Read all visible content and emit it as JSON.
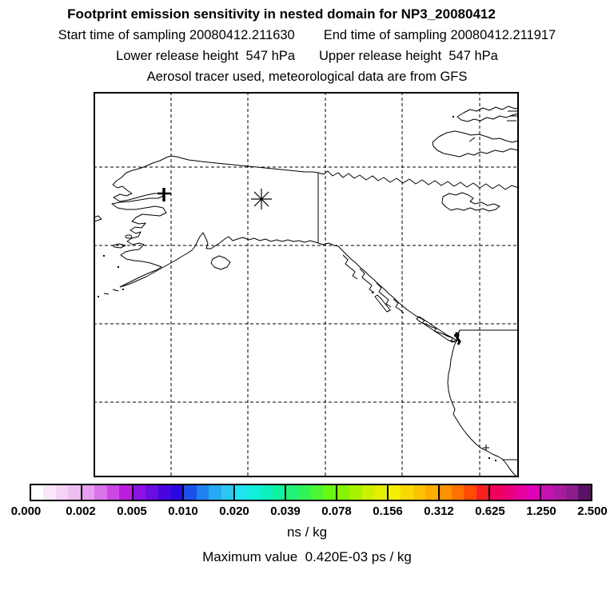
{
  "header": {
    "title": "Footprint emission sensitivity in nested domain for NP3_20080412",
    "start_time_label": "Start time of sampling 20080412.211630",
    "end_time_label": "End time of sampling 20080412.211917",
    "lower_release_label": "Lower release height  547 hPa",
    "upper_release_label": "Upper release height  547 hPa",
    "tracer_line": "Aerosol tracer used, meteorological data are from GFS"
  },
  "map": {
    "release_marker": "asterisk",
    "station_marker": "plus"
  },
  "colorbar": {
    "tick_labels": [
      "0.000",
      "0.002",
      "0.005",
      "0.010",
      "0.020",
      "0.039",
      "0.078",
      "0.156",
      "0.312",
      "0.625",
      "1.250",
      "2.500"
    ],
    "unit_label": "ns / kg",
    "max_value_label": "Maximum value  0.420E-03 ps / kg",
    "cell_colors": [
      "#FFFFFF",
      "#FAE8FA",
      "#F4D3F6",
      "#EFBEF2",
      "#E79EEE",
      "#DA74E9",
      "#CB49E3",
      "#BB1EDD",
      "#8C13E4",
      "#6B0CE1",
      "#4A05DE",
      "#2A08E2",
      "#1C50EC",
      "#2180F2",
      "#27A8F4",
      "#2AC8F0",
      "#1FE4F0",
      "#12EDDC",
      "#0CF0C0",
      "#0FF2A2",
      "#22F278",
      "#30F455",
      "#4BF632",
      "#68F815",
      "#84F400",
      "#A8F200",
      "#CCF000",
      "#E4EE00",
      "#F2EE00",
      "#F8DA00",
      "#FCC400",
      "#FFAD00",
      "#FF9200",
      "#FF7200",
      "#FF4C00",
      "#F8201E",
      "#F00058",
      "#EB007A",
      "#E6009C",
      "#E000BC",
      "#C312B0",
      "#A81A9E",
      "#8C1E8C",
      "#5A1166"
    ]
  },
  "chart_data": {
    "type": "heatmap",
    "title": "Footprint emission sensitivity in nested domain for NP3_20080412",
    "station_id": "NP3_20080412",
    "start_time_of_sampling": "20080412.211630",
    "end_time_of_sampling": "20080412.211917",
    "lower_release_height": "547 hPa",
    "upper_release_height": "547 hPa",
    "tracer": "Aerosol",
    "meteorological_data": "GFS",
    "colorbar_levels": [
      0.0,
      0.002,
      0.005,
      0.01,
      0.02,
      0.039,
      0.078,
      0.156,
      0.312,
      0.625,
      1.25,
      2.5
    ],
    "colorbar_unit": "ns / kg",
    "maximum_value": "0.420E-03 ps / kg",
    "filled_contours_visible": false,
    "map_region": "Alaska, northwest Canada and US west coast with lat/lon grid",
    "grid": {
      "vertical_lines": 5,
      "horizontal_lines": 4,
      "style": "dashed"
    }
  }
}
